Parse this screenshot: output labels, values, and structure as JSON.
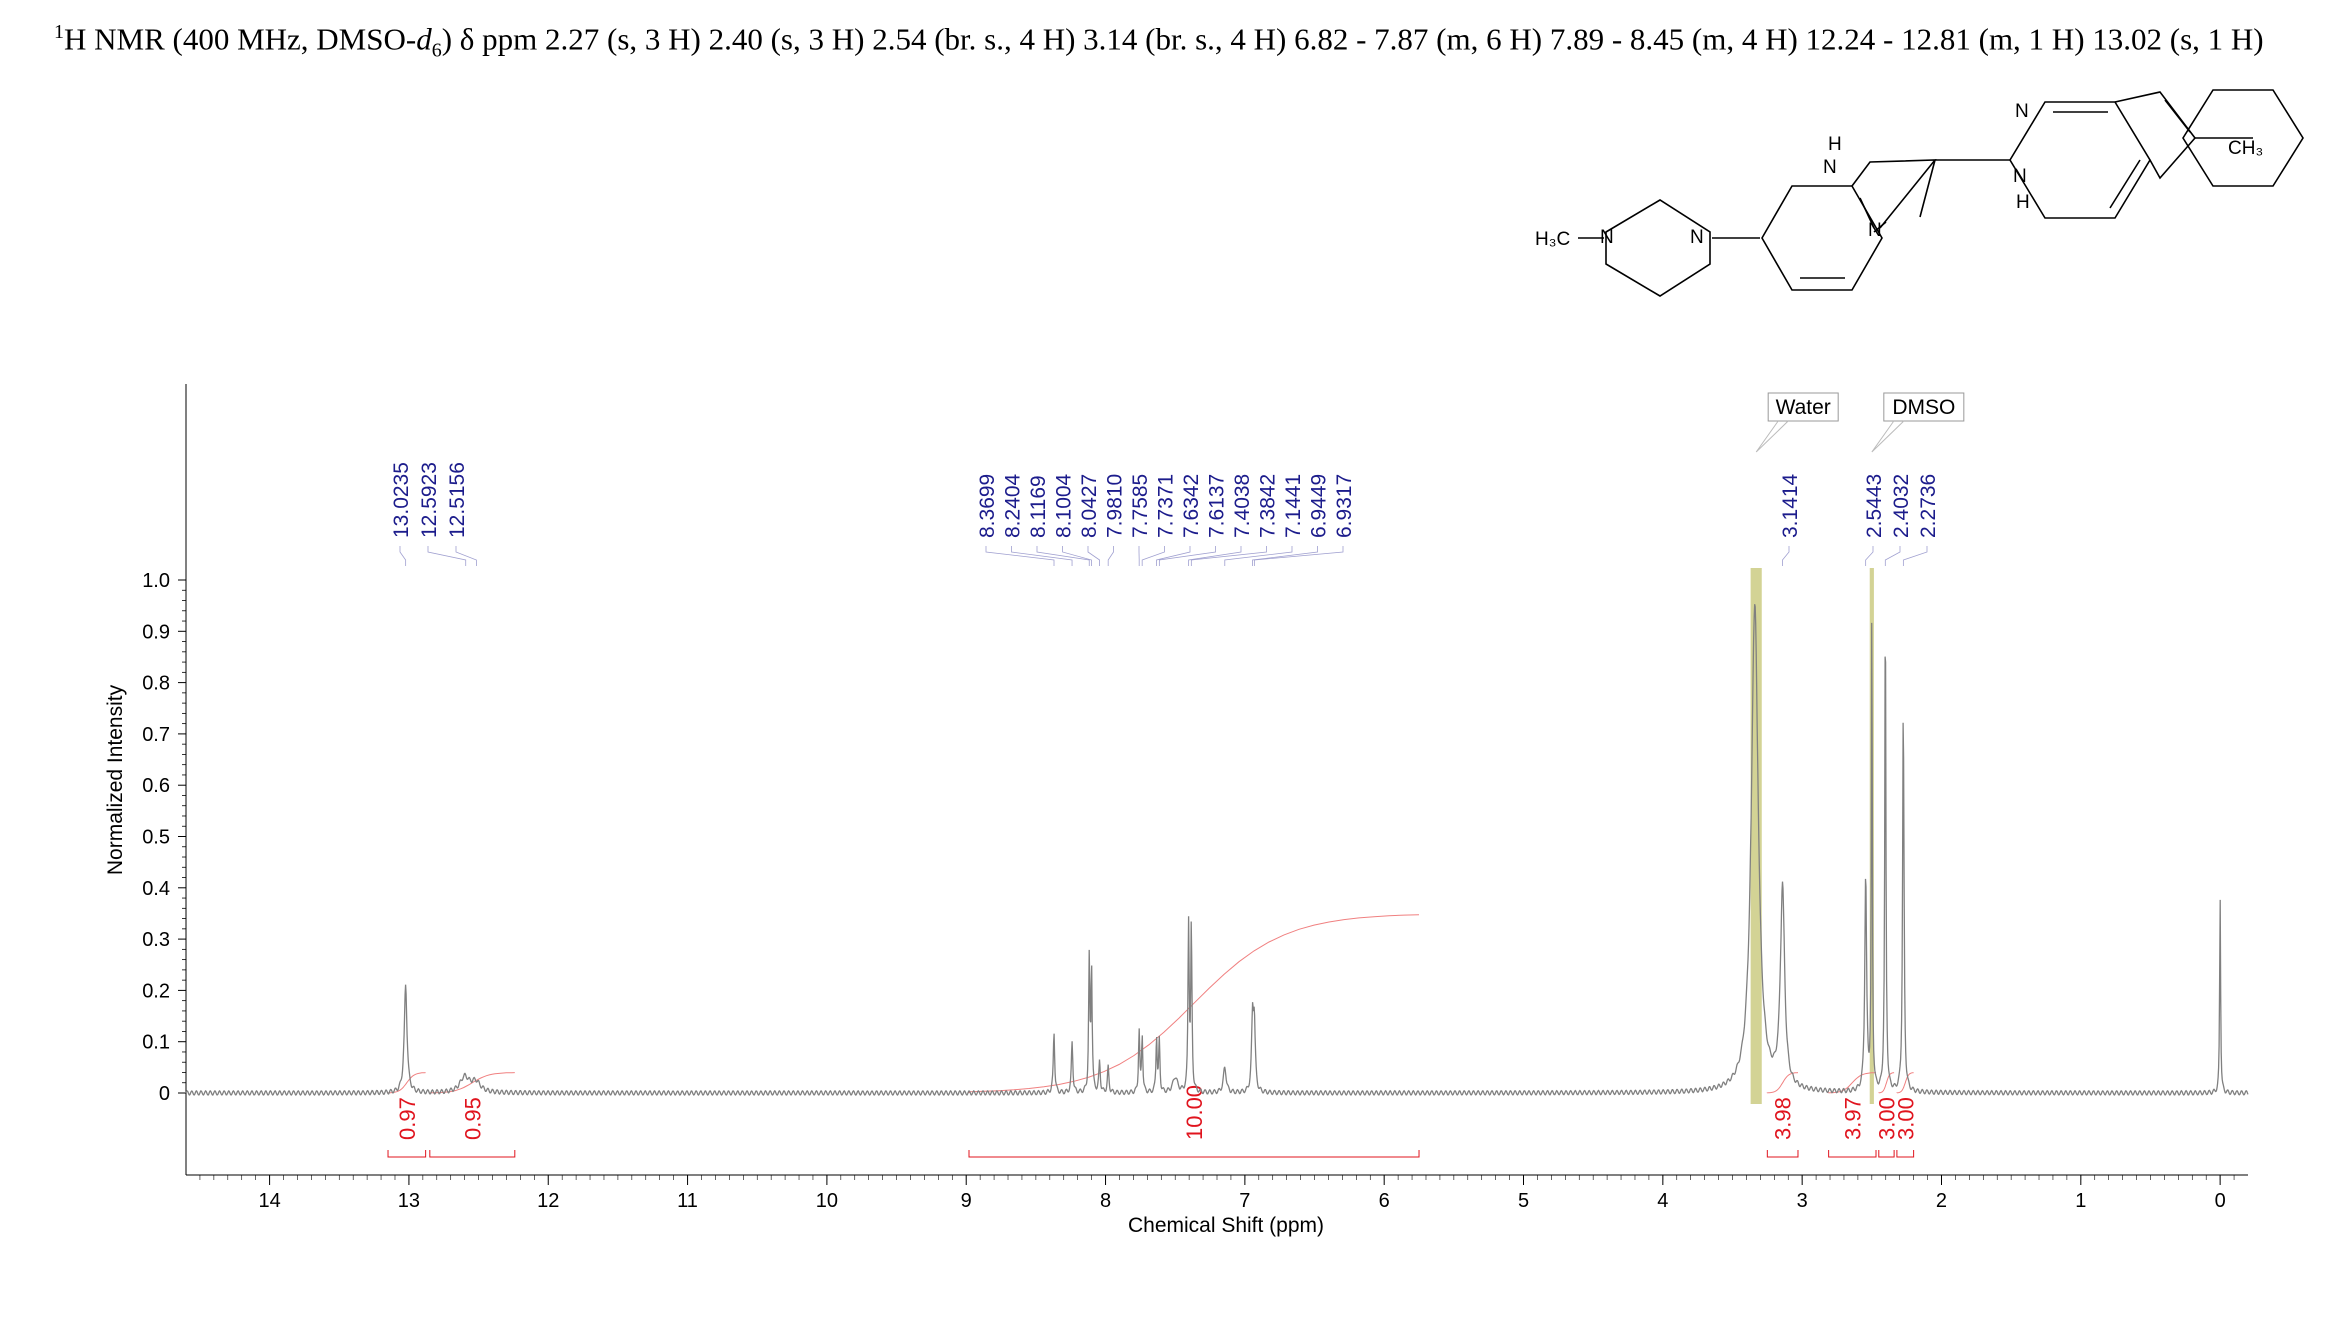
{
  "header": {
    "prefix_sup": "1",
    "text_a": "H NMR (400 MHz, DMSO-",
    "d": "d",
    "d_sub": "6",
    "text_b": ") δ ppm 2.27 (s, 3 H) 2.40 (s, 3 H) 2.54 (br. s., 4 H) 3.14 (br. s., 4 H) 6.82 - 7.87 (m, 6 H) 7.89 - 8.45 (m, 4 H) 12.24 - 12.81 (m, 1 H) 13.02 (s, 1 H)"
  },
  "molecule": {
    "labels": {
      "h3c": "H₃C",
      "n_me": "N",
      "n_pip": "N",
      "nh_top_h": "H",
      "nh_top_n": "N",
      "n_bottom": "N",
      "n_right_top": "N",
      "nh_right_n": "N",
      "nh_right_h": "H",
      "ch3": "CH₃"
    }
  },
  "chart_data": {
    "type": "line",
    "title": "",
    "xlabel": "Chemical Shift (ppm)",
    "ylabel": "Normalized Intensity",
    "xlim": [
      14.6,
      -0.2
    ],
    "ylim": [
      0,
      1.0
    ],
    "x_ticks": [
      "14",
      "13",
      "12",
      "11",
      "10",
      "9",
      "8",
      "7",
      "6",
      "5",
      "4",
      "3",
      "2",
      "1",
      "0"
    ],
    "y_ticks": [
      "0",
      "0.1",
      "0.2",
      "0.3",
      "0.4",
      "0.5",
      "0.6",
      "0.7",
      "0.8",
      "0.9",
      "1.0"
    ],
    "peak_labels": [
      "13.0235",
      "12.5923",
      "12.5156",
      "8.3699",
      "8.2404",
      "8.1169",
      "8.1004",
      "8.0427",
      "7.9810",
      "7.7585",
      "7.7371",
      "7.6342",
      "7.6137",
      "7.4038",
      "7.3842",
      "7.1441",
      "6.9449",
      "6.9317",
      "3.1414",
      "2.5443",
      "2.4032",
      "2.2736"
    ],
    "solvent_labels": [
      {
        "name": "Water",
        "ppm": 3.33
      },
      {
        "name": "DMSO",
        "ppm": 2.5
      }
    ],
    "peaks": [
      {
        "ppm": 13.0235,
        "height": 0.21,
        "width": 0.012
      },
      {
        "ppm": 12.6,
        "height": 0.03,
        "width": 0.04
      },
      {
        "ppm": 12.52,
        "height": 0.02,
        "width": 0.04
      },
      {
        "ppm": 8.37,
        "height": 0.12,
        "width": 0.006
      },
      {
        "ppm": 8.24,
        "height": 0.1,
        "width": 0.006
      },
      {
        "ppm": 8.117,
        "height": 0.26,
        "width": 0.005
      },
      {
        "ppm": 8.1,
        "height": 0.24,
        "width": 0.005
      },
      {
        "ppm": 8.043,
        "height": 0.06,
        "width": 0.006
      },
      {
        "ppm": 7.981,
        "height": 0.05,
        "width": 0.006
      },
      {
        "ppm": 7.759,
        "height": 0.12,
        "width": 0.005
      },
      {
        "ppm": 7.737,
        "height": 0.11,
        "width": 0.005
      },
      {
        "ppm": 7.634,
        "height": 0.11,
        "width": 0.005
      },
      {
        "ppm": 7.614,
        "height": 0.1,
        "width": 0.005
      },
      {
        "ppm": 7.5,
        "height": 0.03,
        "width": 0.02
      },
      {
        "ppm": 7.404,
        "height": 0.33,
        "width": 0.005
      },
      {
        "ppm": 7.384,
        "height": 0.32,
        "width": 0.005
      },
      {
        "ppm": 7.144,
        "height": 0.05,
        "width": 0.012
      },
      {
        "ppm": 6.945,
        "height": 0.14,
        "width": 0.008
      },
      {
        "ppm": 6.932,
        "height": 0.13,
        "width": 0.008
      },
      {
        "ppm": 3.141,
        "height": 0.39,
        "width": 0.018
      },
      {
        "ppm": 2.544,
        "height": 0.42,
        "width": 0.008
      },
      {
        "ppm": 2.5,
        "height": 0.95,
        "width": 0.004
      },
      {
        "ppm": 2.403,
        "height": 0.95,
        "width": 0.005
      },
      {
        "ppm": 2.274,
        "height": 0.75,
        "width": 0.006
      },
      {
        "ppm": 0.0,
        "height": 0.38,
        "width": 0.004
      },
      {
        "ppm": 3.34,
        "height": 0.95,
        "width": 0.03
      }
    ],
    "integrals": [
      {
        "label": "0.97",
        "from": 13.15,
        "to": 12.88
      },
      {
        "label": "0.95",
        "from": 12.85,
        "to": 12.24
      },
      {
        "label": "10.00",
        "from": 8.98,
        "to": 5.75
      },
      {
        "label": "3.98",
        "from": 3.25,
        "to": 3.03
      },
      {
        "label": "3.97",
        "from": 2.81,
        "to": 2.47
      },
      {
        "label": "3.00",
        "from": 2.45,
        "to": 2.34
      },
      {
        "label": "3.00",
        "from": 2.32,
        "to": 2.2
      }
    ],
    "grid": false,
    "legend": "none"
  }
}
